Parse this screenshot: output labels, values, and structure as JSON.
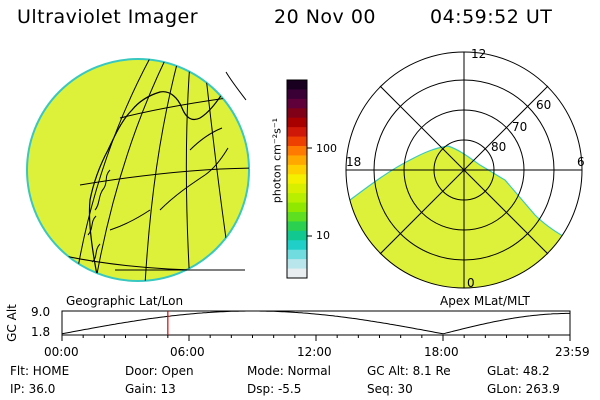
{
  "header": {
    "title": "Ultraviolet Imager",
    "date": "20 Nov 00",
    "time": "04:59:52 UT"
  },
  "colorbar": {
    "unit": "photon cm⁻²s⁻¹",
    "ticks": [
      "100",
      "10"
    ],
    "colors": [
      "#1a0020",
      "#3a0035",
      "#60003a",
      "#800018",
      "#a80000",
      "#d01808",
      "#ee4000",
      "#ff7a00",
      "#ffa800",
      "#ffd000",
      "#f4f000",
      "#d8f000",
      "#b8ee00",
      "#90e800",
      "#5ee020",
      "#2cd050",
      "#10c890",
      "#20d0c8",
      "#70dce0",
      "#b8e6ec",
      "#e8eef0"
    ]
  },
  "geo_map": {
    "label": "Geographic Lat/Lon",
    "fill": "#ddf03a"
  },
  "polar_map": {
    "label": "Apex MLat/MLT",
    "fill": "#ddf03a",
    "mlt_labels": [
      "12",
      "18",
      "6",
      "0"
    ],
    "lat_labels": [
      "60",
      "70",
      "80"
    ]
  },
  "alt_plot": {
    "ylabel": "GC Alt",
    "yticks": [
      "9.0",
      "1.8"
    ],
    "xticks": [
      "00:00",
      "06:00",
      "12:00",
      "18:00",
      "23:59"
    ],
    "marker_hour": 5.0,
    "marker_color": "#e00000"
  },
  "status": {
    "flt": "Flt: HOME",
    "ip": "IP: 36.0",
    "door": "Door: Open",
    "gain": "Gain: 13",
    "mode": "Mode: Normal",
    "dsp": "Dsp:    -5.5",
    "gc_alt": "GC Alt: 8.1 Re",
    "seq": "Seq: 30",
    "glat": "GLat:   48.2",
    "glon": "GLon: 263.9"
  }
}
